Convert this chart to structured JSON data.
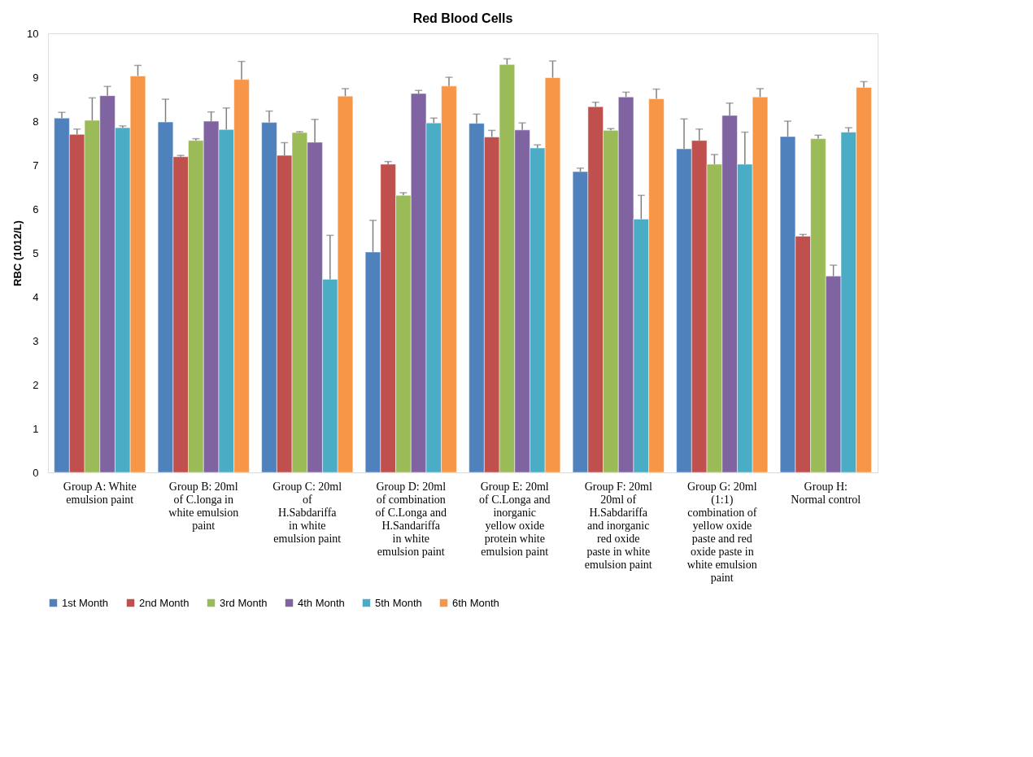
{
  "chart_data": {
    "type": "bar",
    "title": "Red Blood Cells",
    "ylabel": "RBC (1012/L)",
    "categories": [
      "Group A: White emulsion paint",
      "Group B: 20ml of C.longa in white emulsion paint",
      "Group C: 20ml of H.Sabdariffa in white emulsion paint",
      "Group D: 20ml of combination of C.Longa and H.Sandariffa in white emulsion paint",
      "Group E: 20ml of C.Longa and inorganic yellow oxide protein white emulsion paint",
      "Group F: 20ml 20ml of H.Sabdariffa and inorganic red oxide paste in white emulsion paint",
      "Group G: 20ml (1:1) combination of yellow oxide paste and red oxide paste in white emulsion paint",
      "Group H: Normal control"
    ],
    "ylim": [
      0,
      10
    ],
    "yticks": [
      0,
      1,
      2,
      3,
      4,
      5,
      6,
      7,
      8,
      9,
      10
    ],
    "grid": false,
    "legend": "bottom",
    "series": [
      {
        "name": "1st Month",
        "color": "#4f81bd",
        "values": [
          8.07,
          7.98,
          7.97,
          5.02,
          7.95,
          6.85,
          7.37,
          7.65
        ],
        "errors": [
          [
            8.07,
            8.2
          ],
          [
            7.98,
            8.5
          ],
          [
            7.97,
            8.23
          ],
          [
            5.02,
            5.74
          ],
          [
            7.95,
            8.16
          ],
          [
            6.85,
            6.93
          ],
          [
            7.37,
            8.05
          ],
          [
            7.65,
            8.0
          ]
        ]
      },
      {
        "name": "2nd Month",
        "color": "#c0504d",
        "values": [
          7.7,
          7.19,
          7.22,
          7.02,
          7.64,
          8.33,
          7.56,
          5.38
        ],
        "errors": [
          [
            7.7,
            7.82
          ],
          [
            7.19,
            7.22
          ],
          [
            7.22,
            7.51
          ],
          [
            7.02,
            7.08
          ],
          [
            7.64,
            7.79
          ],
          [
            8.33,
            8.43
          ],
          [
            7.56,
            7.82
          ],
          [
            5.38,
            5.42
          ]
        ]
      },
      {
        "name": "3rd Month",
        "color": "#9bbb59",
        "values": [
          8.02,
          7.56,
          7.74,
          6.31,
          9.29,
          7.79,
          7.02,
          7.6
        ],
        "errors": [
          [
            8.02,
            8.53
          ],
          [
            7.56,
            7.6
          ],
          [
            7.74,
            7.76
          ],
          [
            6.31,
            6.37
          ],
          [
            9.29,
            9.42
          ],
          [
            7.79,
            7.83
          ],
          [
            7.02,
            7.24
          ],
          [
            7.6,
            7.68
          ]
        ]
      },
      {
        "name": "4th Month",
        "color": "#8064a2",
        "values": [
          8.58,
          8.0,
          7.52,
          8.63,
          7.8,
          8.55,
          8.13,
          4.47
        ],
        "errors": [
          [
            8.58,
            8.79
          ],
          [
            8.0,
            8.21
          ],
          [
            7.52,
            8.04
          ],
          [
            8.63,
            8.7
          ],
          [
            7.8,
            7.96
          ],
          [
            8.55,
            8.66
          ],
          [
            8.13,
            8.41
          ],
          [
            4.47,
            4.72
          ]
        ]
      },
      {
        "name": "5th Month",
        "color": "#4bacc6",
        "values": [
          7.85,
          7.81,
          4.4,
          7.96,
          7.39,
          5.77,
          7.02,
          7.75
        ],
        "errors": [
          [
            7.85,
            7.89
          ],
          [
            7.81,
            8.3
          ],
          [
            4.4,
            5.4
          ],
          [
            7.96,
            8.07
          ],
          [
            7.39,
            7.46
          ],
          [
            5.77,
            6.31
          ],
          [
            7.02,
            7.75
          ],
          [
            7.75,
            7.85
          ]
        ]
      },
      {
        "name": "6th Month",
        "color": "#f79646",
        "values": [
          9.03,
          8.95,
          8.57,
          8.8,
          8.99,
          8.51,
          8.55,
          8.77
        ],
        "errors": [
          [
            9.03,
            9.27
          ],
          [
            8.95,
            9.36
          ],
          [
            8.57,
            8.74
          ],
          [
            8.8,
            9.0
          ],
          [
            8.99,
            9.37
          ],
          [
            8.51,
            8.73
          ],
          [
            8.55,
            8.74
          ],
          [
            8.77,
            8.9
          ]
        ]
      }
    ]
  }
}
